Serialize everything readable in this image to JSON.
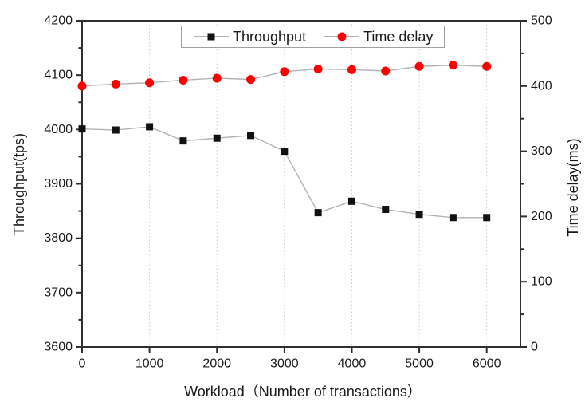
{
  "chart_data": {
    "type": "line",
    "title": "",
    "xlabel": "Workload（Number of transactions）",
    "ylabel_left": "Throughput(tps)",
    "ylabel_right": "Time delay(ms)",
    "x": [
      0,
      500,
      1000,
      1500,
      2000,
      2500,
      3000,
      3500,
      4000,
      4500,
      5000,
      5500,
      6000
    ],
    "series": [
      {
        "name": "Throughput",
        "axis": "left",
        "marker": "square",
        "marker_color": "#111111",
        "values": [
          4001,
          3999,
          4005,
          3979,
          3984,
          3989,
          3960,
          3847,
          3868,
          3853,
          3844,
          3838,
          3838
        ]
      },
      {
        "name": "Time delay",
        "axis": "right",
        "marker": "circle",
        "marker_color": "#ff0000",
        "values": [
          400,
          403,
          405,
          409,
          412,
          410,
          422,
          426,
          425,
          423,
          430,
          432,
          430
        ]
      }
    ],
    "axes": {
      "x": {
        "min": 0,
        "max": 6500,
        "tick_values": [
          0,
          1000,
          2000,
          3000,
          4000,
          5000,
          6000
        ],
        "gridlines": [
          1000,
          2000,
          3000,
          4000,
          5000,
          6000
        ]
      },
      "left": {
        "min": 3600,
        "max": 4200,
        "tick_step": 100,
        "minor_step": 50,
        "tick_values": [
          3600,
          3700,
          3800,
          3900,
          4000,
          4100,
          4200
        ]
      },
      "right": {
        "min": 0,
        "max": 500,
        "tick_step": 100,
        "minor_step": 50,
        "tick_values": [
          0,
          100,
          200,
          300,
          400,
          500
        ]
      }
    },
    "legend": {
      "position": "top-center",
      "items": [
        "Throughput",
        "Time delay"
      ]
    },
    "style": {
      "line_color": "#b3b3b3",
      "frame_color": "#2e2e2e",
      "grid_color": "#cccccc",
      "grid_style": "dotted-vertical",
      "legend_line_color": "#999999"
    }
  }
}
